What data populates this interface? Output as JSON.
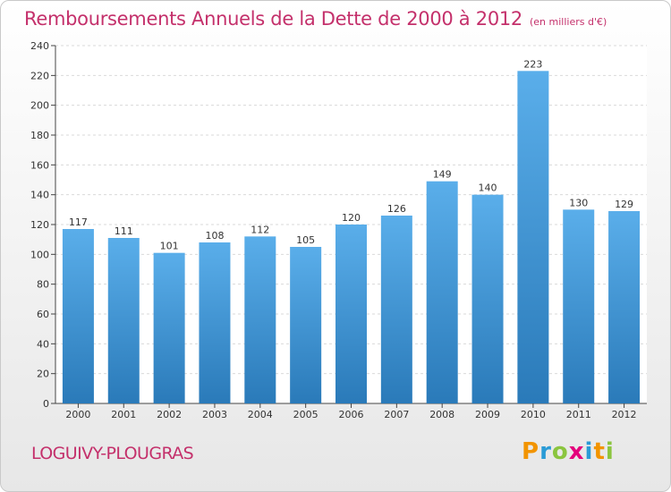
{
  "header": {
    "title": "Remboursements Annuels de la Dette de 2000 à 2012",
    "unit": "(en milliers d'€)"
  },
  "footer": {
    "commune": "LOGUIVY-PLOUGRAS",
    "logo_letters": [
      "P",
      "r",
      "o",
      "x",
      "i",
      "t",
      "i"
    ],
    "logo_colors": [
      "#f29400",
      "#2a9bd6",
      "#8bc53f",
      "#e4007c",
      "#2a9bd6",
      "#f29400",
      "#8bc53f"
    ]
  },
  "colors": {
    "bar_light": "#5aaeea",
    "bar_dark": "#2a7ab9",
    "title": "#c4306b"
  },
  "chart_data": {
    "type": "bar",
    "categories": [
      "2000",
      "2001",
      "2002",
      "2003",
      "2004",
      "2005",
      "2006",
      "2007",
      "2008",
      "2009",
      "2010",
      "2011",
      "2012"
    ],
    "values": [
      117,
      111,
      101,
      108,
      112,
      105,
      120,
      126,
      149,
      140,
      223,
      130,
      129
    ],
    "ylim": [
      0,
      240
    ],
    "yticks": [
      0,
      20,
      40,
      60,
      80,
      100,
      120,
      140,
      160,
      180,
      200,
      220,
      240
    ],
    "grid": true,
    "legend": "none"
  }
}
